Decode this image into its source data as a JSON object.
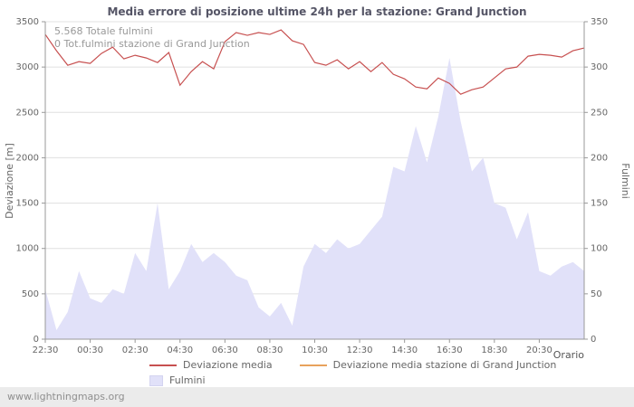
{
  "page": {
    "footer": "www.lightningmaps.org"
  },
  "chart": {
    "title": "Media errore di posizione ultime 24h per la stazione: Grand Junction",
    "annotation_line1": "5.568 Totale fulmini",
    "annotation_line2": "0 Tot.fulmini stazione di Grand Junction",
    "y_left_label": "Deviazione  [m]",
    "y_right_label": "Fulmini",
    "x_label": "Orario",
    "legend": [
      {
        "label": "Deviazione media",
        "color": "#c75050",
        "type": "line"
      },
      {
        "label": "Deviazione media stazione di Grand Junction",
        "color": "#e8a25c",
        "type": "line"
      },
      {
        "label": "Fulmini",
        "color": "#e1e1f9",
        "type": "area"
      }
    ]
  },
  "chart_data": {
    "type": "line",
    "title": "Media errore di posizione ultime 24h per la stazione: Grand Junction",
    "xlabel": "Orario",
    "ylabel_left": "Deviazione  [m]",
    "ylabel_right": "Fulmini",
    "x_ticks": [
      "22:30",
      "00:30",
      "02:30",
      "04:30",
      "06:30",
      "08:30",
      "10:30",
      "12:30",
      "14:30",
      "16:30",
      "18:30",
      "20:30"
    ],
    "x_tick_hours": [
      0,
      2,
      4,
      6,
      8,
      10,
      12,
      14,
      16,
      18,
      20,
      22
    ],
    "x_hour_span": 24,
    "y_left_ticks": [
      0,
      500,
      1000,
      1500,
      2000,
      2500,
      3000,
      3500
    ],
    "y_right_ticks": [
      0,
      50,
      100,
      150,
      200,
      250,
      300,
      350
    ],
    "y_left_range": [
      0,
      3500
    ],
    "y_right_range": [
      0,
      350
    ],
    "grid": "horizontal",
    "legend_position": "bottom",
    "x_hours": [
      0,
      0.5,
      1,
      1.5,
      2,
      2.5,
      3,
      3.5,
      4,
      4.5,
      5,
      5.5,
      6,
      6.5,
      7,
      7.5,
      8,
      8.5,
      9,
      9.5,
      10,
      10.5,
      11,
      11.5,
      12,
      12.5,
      13,
      13.5,
      14,
      14.5,
      15,
      15.5,
      16,
      16.5,
      17,
      17.5,
      18,
      18.5,
      19,
      19.5,
      20,
      20.5,
      21,
      21.5,
      22,
      22.5,
      23,
      23.5,
      24
    ],
    "series": [
      {
        "name": "Deviazione media",
        "type": "line",
        "axis": "left",
        "color": "#c75050",
        "values": [
          3360,
          3180,
          3020,
          3060,
          3040,
          3150,
          3220,
          3090,
          3130,
          3100,
          3050,
          3160,
          2800,
          2950,
          3060,
          2980,
          3280,
          3380,
          3350,
          3380,
          3360,
          3410,
          3290,
          3250,
          3050,
          3020,
          3080,
          2980,
          3060,
          2950,
          3050,
          2920,
          2870,
          2780,
          2760,
          2880,
          2820,
          2700,
          2750,
          2780,
          2880,
          2980,
          3000,
          3120,
          3140,
          3130,
          3110,
          3180,
          3210
        ]
      },
      {
        "name": "Deviazione media stazione di Grand Junction",
        "type": "line",
        "axis": "left",
        "color": "#e8a25c",
        "values": []
      },
      {
        "name": "Fulmini",
        "type": "area",
        "axis": "right",
        "color": "#e1e1f9",
        "values": [
          55,
          10,
          30,
          75,
          45,
          40,
          55,
          50,
          95,
          75,
          150,
          55,
          75,
          105,
          85,
          95,
          85,
          70,
          65,
          35,
          25,
          40,
          15,
          80,
          105,
          95,
          110,
          100,
          105,
          120,
          135,
          190,
          185,
          235,
          195,
          245,
          310,
          240,
          185,
          200,
          150,
          145,
          110,
          140,
          75,
          70,
          80,
          85,
          75
        ]
      }
    ]
  }
}
